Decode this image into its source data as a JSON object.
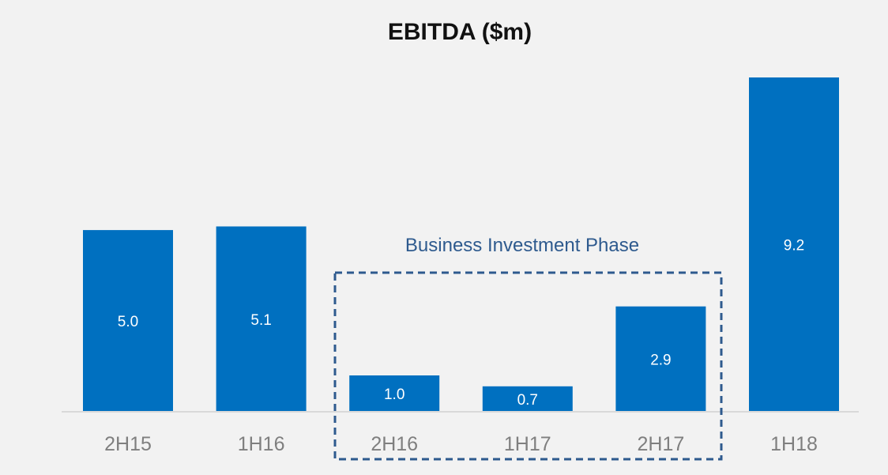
{
  "chart_data": {
    "type": "bar",
    "title": "EBITDA ($m)",
    "xlabel": "",
    "ylabel": "",
    "categories": [
      "2H15",
      "1H16",
      "2H16",
      "1H17",
      "2H17",
      "1H18"
    ],
    "values": [
      5.0,
      5.1,
      1.0,
      0.7,
      2.9,
      9.2
    ],
    "value_labels": [
      "5.0",
      "5.1",
      "1.0",
      "0.7",
      "2.9",
      "9.2"
    ],
    "ylim": [
      0,
      10
    ],
    "grid": false,
    "legend": "none",
    "annotations": [
      {
        "text": "Business Investment Phase",
        "categories": [
          "2H16",
          "1H17",
          "2H17"
        ],
        "style": "dashed box"
      }
    ]
  },
  "colors": {
    "bar": "#0070c0",
    "background": "#f2f2f2",
    "axis": "#d9d9d9",
    "annotation": "#2e5a8e",
    "tick_label": "#7f7f7f",
    "value_label": "#ffffff"
  }
}
